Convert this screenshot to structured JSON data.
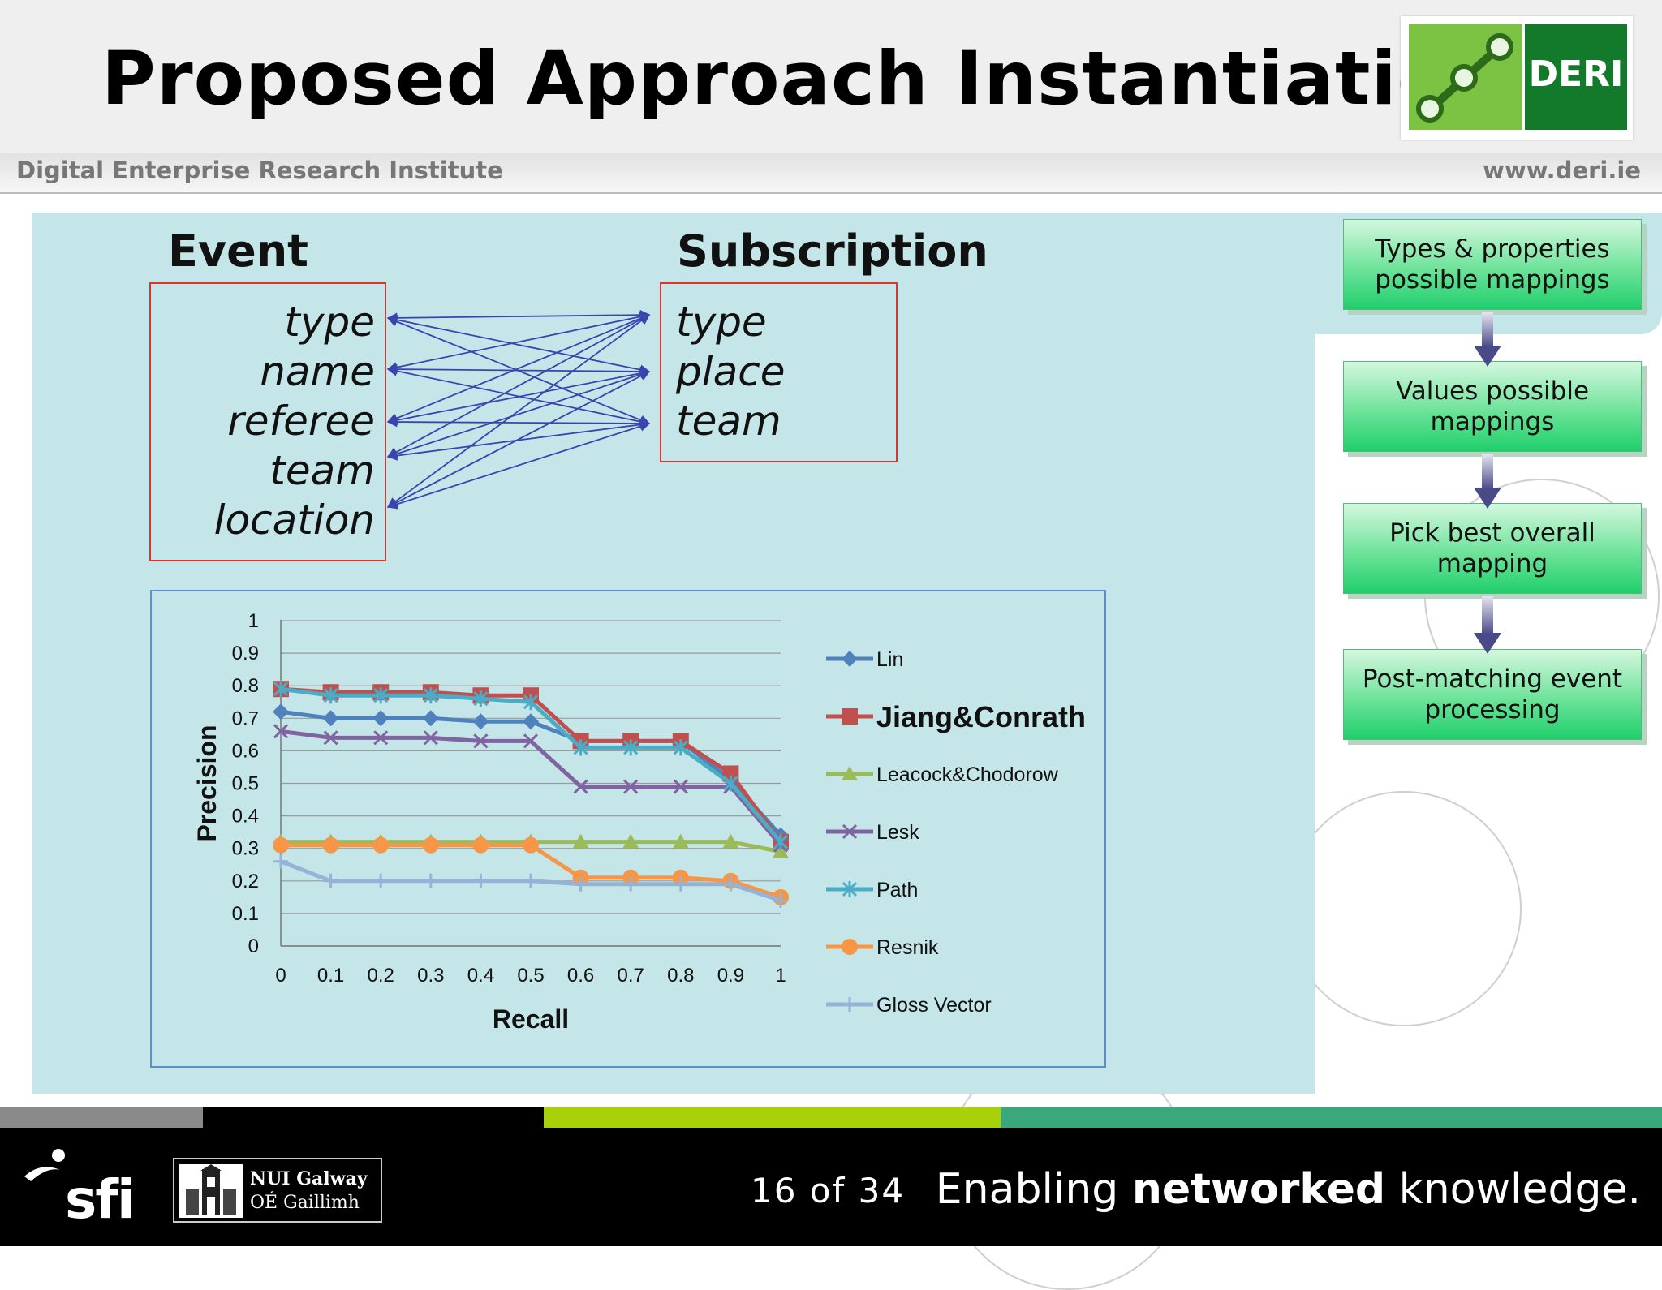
{
  "slide": {
    "title": "Proposed Approach Instantiation",
    "institute": "Digital Enterprise Research Institute",
    "website": "www.deri.ie",
    "logo_text": "DERI",
    "page_number": "16 of 34",
    "tagline_pre": "Enabling ",
    "tagline_bold": "networked",
    "tagline_post": " knowledge.",
    "nui_name": "NUI Galway",
    "nui_irish": "OÉ Gaillimh",
    "sfi_text": "sfi"
  },
  "colors": {
    "stripe": [
      "#8a8a8a",
      "#000000",
      "#a8d10a",
      "#3aa87b"
    ],
    "content_bg": "#c5e6e8",
    "arrow": "#3a44b0",
    "red_box": "#e0332a"
  },
  "mapping": {
    "event_header": "Event",
    "subscription_header": "Subscription",
    "event_items": [
      "type",
      "name",
      "referee",
      "team",
      "location"
    ],
    "subscription_items": [
      "type",
      "place",
      "team"
    ]
  },
  "flow": {
    "steps": [
      "Types & properties possible mappings",
      "Values possible mappings",
      "Pick best overall mapping",
      "Post-matching event processing"
    ]
  },
  "chart_data": {
    "type": "line",
    "xlabel": "Recall",
    "ylabel": "Precision",
    "x": [
      0,
      0.1,
      0.2,
      0.3,
      0.4,
      0.5,
      0.6,
      0.7,
      0.8,
      0.9,
      1
    ],
    "x_ticks": [
      "0",
      "0.1",
      "0.2",
      "0.3",
      "0.4",
      "0.5",
      "0.6",
      "0.7",
      "0.8",
      "0.9",
      "1"
    ],
    "y_ticks": [
      "0",
      "0.1",
      "0.2",
      "0.3",
      "0.4",
      "0.5",
      "0.6",
      "0.7",
      "0.8",
      "0.9",
      "1"
    ],
    "ylim": [
      0,
      1
    ],
    "grid": true,
    "legend_position": "right",
    "series": [
      {
        "name": "Lin",
        "color": "#4f81bd",
        "marker": "diamond",
        "values": [
          0.72,
          0.7,
          0.7,
          0.7,
          0.69,
          0.69,
          0.63,
          0.63,
          0.63,
          0.51,
          0.34
        ]
      },
      {
        "name": "Jiang&Conrath",
        "color": "#c0504d",
        "marker": "square",
        "values": [
          0.79,
          0.78,
          0.78,
          0.78,
          0.77,
          0.77,
          0.63,
          0.63,
          0.63,
          0.53,
          0.32
        ]
      },
      {
        "name": "Leacock&Chodorow",
        "color": "#9bbb59",
        "marker": "triangle",
        "values": [
          0.32,
          0.32,
          0.32,
          0.32,
          0.32,
          0.32,
          0.32,
          0.32,
          0.32,
          0.32,
          0.29
        ]
      },
      {
        "name": "Lesk",
        "color": "#8064a2",
        "marker": "x",
        "values": [
          0.66,
          0.64,
          0.64,
          0.64,
          0.63,
          0.63,
          0.49,
          0.49,
          0.49,
          0.49,
          0.31
        ]
      },
      {
        "name": "Path",
        "color": "#4bacc6",
        "marker": "star",
        "values": [
          0.79,
          0.77,
          0.77,
          0.77,
          0.76,
          0.75,
          0.61,
          0.61,
          0.61,
          0.5,
          0.32
        ]
      },
      {
        "name": "Resnik",
        "color": "#f79646",
        "marker": "circle",
        "values": [
          0.31,
          0.31,
          0.31,
          0.31,
          0.31,
          0.31,
          0.21,
          0.21,
          0.21,
          0.2,
          0.15
        ]
      },
      {
        "name": "Gloss Vector",
        "color": "#95b3d7",
        "marker": "plus",
        "values": [
          0.26,
          0.2,
          0.2,
          0.2,
          0.2,
          0.2,
          0.19,
          0.19,
          0.19,
          0.19,
          0.14
        ]
      }
    ]
  }
}
